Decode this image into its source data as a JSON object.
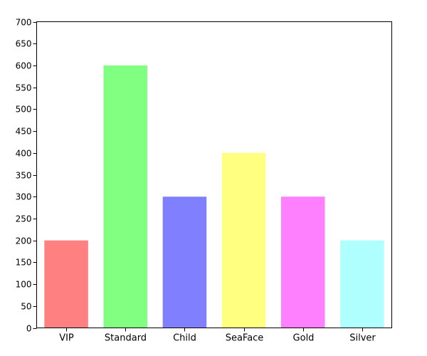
{
  "chart_data": {
    "type": "bar",
    "categories": [
      "VIP",
      "Standard",
      "Child",
      "SeaFace",
      "Gold",
      "Silver"
    ],
    "values": [
      200,
      600,
      300,
      400,
      300,
      200
    ],
    "colors": [
      "#ff8080",
      "#80ff80",
      "#8080ff",
      "#ffff80",
      "#ff80ff",
      "#b0ffff"
    ],
    "ylim": [
      0,
      700
    ],
    "yticks": [
      0,
      50,
      100,
      150,
      200,
      250,
      300,
      350,
      400,
      450,
      500,
      550,
      600,
      650,
      700
    ],
    "title": "",
    "xlabel": "",
    "ylabel": "",
    "grid": false,
    "legend": "none"
  }
}
